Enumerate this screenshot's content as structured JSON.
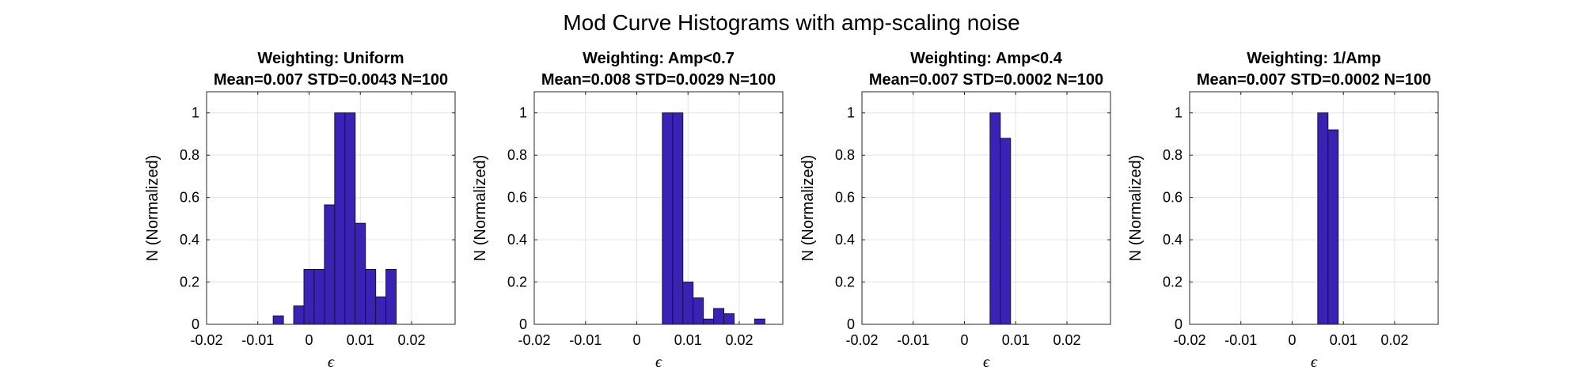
{
  "figure": {
    "title": "Mod Curve Histograms with amp-scaling noise",
    "bar_color": "#3a22b5",
    "bar_edge": "#1a1040",
    "grid_color": "#e3e3e3",
    "axis_color": "#262626"
  },
  "chart_data": [
    {
      "type": "bar",
      "title": "Weighting: Uniform",
      "subtitle": "Mean=0.007 STD=0.0043 N=100",
      "xlabel": "ϵ",
      "ylabel": "N (Normalized)",
      "xlim": [
        -0.02,
        0.0285
      ],
      "ylim": [
        0,
        1.1
      ],
      "xticks": [
        -0.02,
        -0.01,
        0,
        0.01,
        0.02
      ],
      "xtick_labels": [
        "-0.02",
        "-0.01",
        "0",
        "0.01",
        "0.02"
      ],
      "yticks": [
        0,
        0.2,
        0.4,
        0.6,
        0.8,
        1
      ],
      "ytick_labels": [
        "0",
        "0.2",
        "0.4",
        "0.6",
        "0.8",
        "1"
      ],
      "grid": true,
      "bin_width": 0.002,
      "bin_edges_start": -0.007,
      "values": [
        0.04,
        0,
        0.087,
        0.26,
        0.26,
        0.565,
        1.0,
        1.0,
        0.478,
        0.26,
        0.13,
        0.26
      ]
    },
    {
      "type": "bar",
      "title": "Weighting: Amp<0.7",
      "subtitle": "Mean=0.008 STD=0.0029 N=100",
      "xlabel": "ϵ",
      "ylabel": "N (Normalized)",
      "xlim": [
        -0.02,
        0.0285
      ],
      "ylim": [
        0,
        1.1
      ],
      "xticks": [
        -0.02,
        -0.01,
        0,
        0.01,
        0.02
      ],
      "xtick_labels": [
        "-0.02",
        "-0.01",
        "0",
        "0.01",
        "0.02"
      ],
      "yticks": [
        0,
        0.2,
        0.4,
        0.6,
        0.8,
        1
      ],
      "ytick_labels": [
        "0",
        "0.2",
        "0.4",
        "0.6",
        "0.8",
        "1"
      ],
      "grid": true,
      "bin_width": 0.002,
      "bin_edges_start": 0.005,
      "values": [
        1.0,
        1.0,
        0.2,
        0.125,
        0.025,
        0.075,
        0.05,
        0,
        0,
        0.025
      ]
    },
    {
      "type": "bar",
      "title": "Weighting: Amp<0.4",
      "subtitle": "Mean=0.007 STD=0.0002 N=100",
      "xlabel": "ϵ",
      "ylabel": "N (Normalized)",
      "xlim": [
        -0.02,
        0.0285
      ],
      "ylim": [
        0,
        1.1
      ],
      "xticks": [
        -0.02,
        -0.01,
        0,
        0.01,
        0.02
      ],
      "xtick_labels": [
        "-0.02",
        "-0.01",
        "0",
        "0.01",
        "0.02"
      ],
      "yticks": [
        0,
        0.2,
        0.4,
        0.6,
        0.8,
        1
      ],
      "ytick_labels": [
        "0",
        "0.2",
        "0.4",
        "0.6",
        "0.8",
        "1"
      ],
      "grid": true,
      "bin_width": 0.002,
      "bin_edges_start": 0.005,
      "values": [
        1.0,
        0.88
      ]
    },
    {
      "type": "bar",
      "title": "Weighting: 1/Amp",
      "subtitle": "Mean=0.007 STD=0.0002 N=100",
      "xlabel": "ϵ",
      "ylabel": "N (Normalized)",
      "xlim": [
        -0.02,
        0.0285
      ],
      "ylim": [
        0,
        1.1
      ],
      "xticks": [
        -0.02,
        -0.01,
        0,
        0.01,
        0.02
      ],
      "xtick_labels": [
        "-0.02",
        "-0.01",
        "0",
        "0.01",
        "0.02"
      ],
      "yticks": [
        0,
        0.2,
        0.4,
        0.6,
        0.8,
        1
      ],
      "ytick_labels": [
        "0",
        "0.2",
        "0.4",
        "0.6",
        "0.8",
        "1"
      ],
      "grid": true,
      "bin_width": 0.002,
      "bin_edges_start": 0.005,
      "values": [
        1.0,
        0.92
      ]
    }
  ]
}
